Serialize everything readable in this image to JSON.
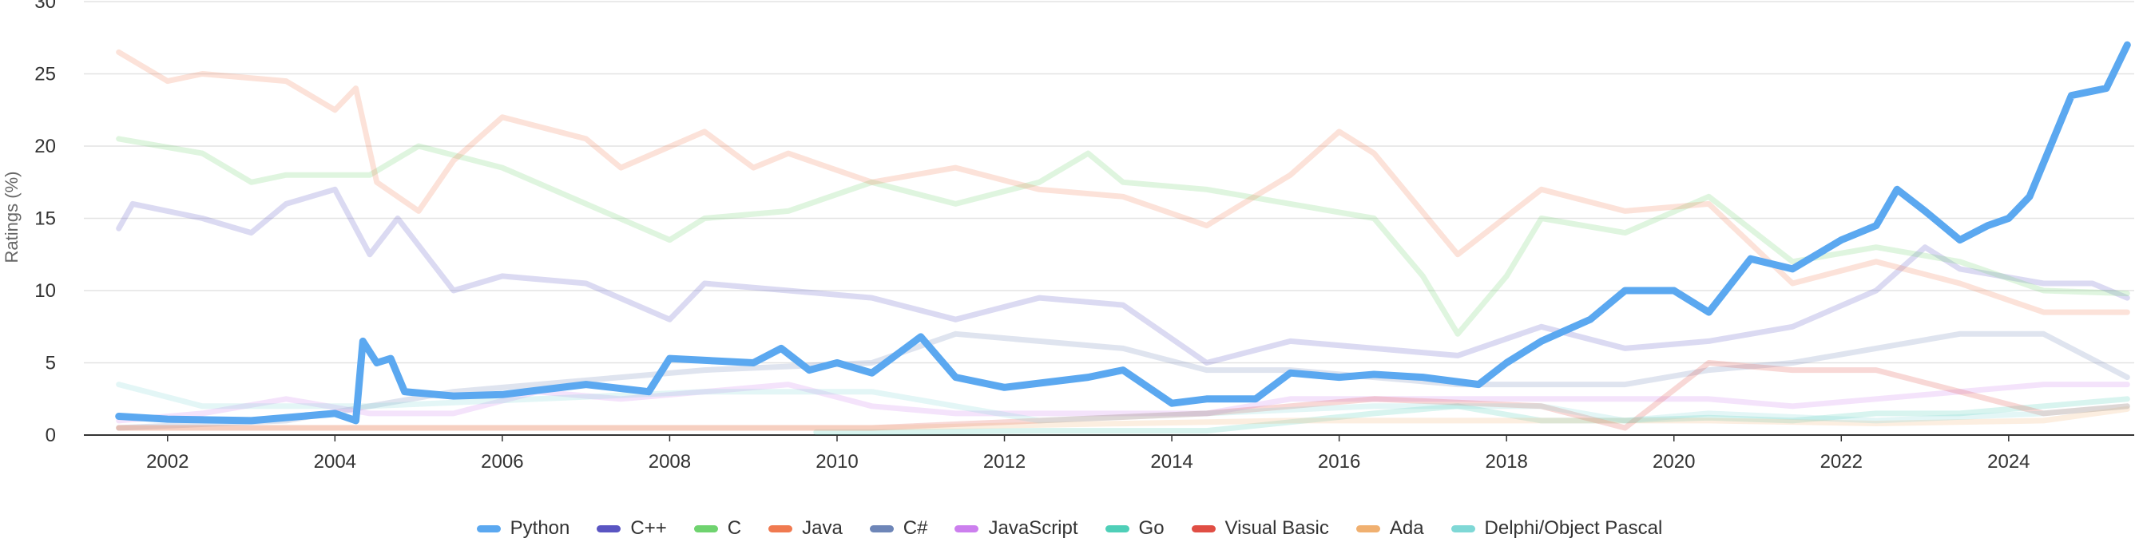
{
  "chart_data": {
    "type": "line",
    "ylabel": "Ratings (%)",
    "ylim": [
      0,
      30
    ],
    "y_ticks": [
      "0",
      "5",
      "10",
      "15",
      "20",
      "25",
      "30"
    ],
    "x_ticks": [
      "2002",
      "2004",
      "2006",
      "2008",
      "2010",
      "2012",
      "2014",
      "2016",
      "2018",
      "2020",
      "2022",
      "2024"
    ],
    "xlim": [
      "2001-01",
      "2025-07"
    ],
    "grid": true,
    "legend_position": "bottom",
    "highlighted_series": "Python",
    "series": [
      {
        "name": "Python",
        "color": "#5ba8f0",
        "points": [
          [
            "2001-06",
            1.3
          ],
          [
            "2002-01",
            1.1
          ],
          [
            "2003-01",
            1.0
          ],
          [
            "2004-01",
            1.5
          ],
          [
            "2004-04",
            1.0
          ],
          [
            "2004-05",
            6.5
          ],
          [
            "2004-07",
            5.0
          ],
          [
            "2004-09",
            5.3
          ],
          [
            "2004-11",
            3.0
          ],
          [
            "2005-06",
            2.7
          ],
          [
            "2006-01",
            2.8
          ],
          [
            "2007-01",
            3.5
          ],
          [
            "2007-10",
            3.0
          ],
          [
            "2008-01",
            5.3
          ],
          [
            "2009-01",
            5.0
          ],
          [
            "2009-05",
            6.0
          ],
          [
            "2009-09",
            4.5
          ],
          [
            "2010-01",
            5.0
          ],
          [
            "2010-06",
            4.3
          ],
          [
            "2011-01",
            6.8
          ],
          [
            "2011-06",
            4.0
          ],
          [
            "2012-01",
            3.3
          ],
          [
            "2013-01",
            4.0
          ],
          [
            "2013-06",
            4.5
          ],
          [
            "2014-01",
            2.2
          ],
          [
            "2014-06",
            2.5
          ],
          [
            "2015-01",
            2.5
          ],
          [
            "2015-06",
            4.3
          ],
          [
            "2016-01",
            4.0
          ],
          [
            "2016-06",
            4.2
          ],
          [
            "2017-01",
            4.0
          ],
          [
            "2017-09",
            3.5
          ],
          [
            "2018-01",
            5.0
          ],
          [
            "2018-06",
            6.5
          ],
          [
            "2019-01",
            8.0
          ],
          [
            "2019-06",
            10.0
          ],
          [
            "2020-01",
            10.0
          ],
          [
            "2020-06",
            8.5
          ],
          [
            "2020-12",
            12.2
          ],
          [
            "2021-06",
            11.5
          ],
          [
            "2022-01",
            13.5
          ],
          [
            "2022-06",
            14.5
          ],
          [
            "2022-09",
            17.0
          ],
          [
            "2023-01",
            15.5
          ],
          [
            "2023-06",
            13.5
          ],
          [
            "2023-10",
            14.5
          ],
          [
            "2024-01",
            15.0
          ],
          [
            "2024-04",
            16.5
          ],
          [
            "2024-07",
            20.0
          ],
          [
            "2024-10",
            23.5
          ],
          [
            "2025-01",
            23.8
          ],
          [
            "2025-03",
            24.0
          ],
          [
            "2025-06",
            27.0
          ]
        ]
      },
      {
        "name": "C++",
        "color": "#5a55c2",
        "points": [
          [
            "2001-06",
            14.3
          ],
          [
            "2001-08",
            16.0
          ],
          [
            "2002-06",
            15.0
          ],
          [
            "2003-01",
            14.0
          ],
          [
            "2003-06",
            16.0
          ],
          [
            "2004-01",
            17.0
          ],
          [
            "2004-06",
            12.5
          ],
          [
            "2004-10",
            15.0
          ],
          [
            "2005-06",
            10.0
          ],
          [
            "2006-01",
            11.0
          ],
          [
            "2007-01",
            10.5
          ],
          [
            "2008-01",
            8.0
          ],
          [
            "2008-06",
            10.5
          ],
          [
            "2009-06",
            10.0
          ],
          [
            "2010-06",
            9.5
          ],
          [
            "2011-06",
            8.0
          ],
          [
            "2012-06",
            9.5
          ],
          [
            "2013-06",
            9.0
          ],
          [
            "2014-06",
            5.0
          ],
          [
            "2015-06",
            6.5
          ],
          [
            "2016-06",
            6.0
          ],
          [
            "2017-06",
            5.5
          ],
          [
            "2018-06",
            7.5
          ],
          [
            "2019-06",
            6.0
          ],
          [
            "2020-06",
            6.5
          ],
          [
            "2021-06",
            7.5
          ],
          [
            "2022-06",
            10.0
          ],
          [
            "2023-01",
            13.0
          ],
          [
            "2023-06",
            11.5
          ],
          [
            "2024-06",
            10.5
          ],
          [
            "2025-01",
            10.5
          ],
          [
            "2025-06",
            9.5
          ]
        ]
      },
      {
        "name": "C",
        "color": "#6fd36f",
        "points": [
          [
            "2001-06",
            20.5
          ],
          [
            "2002-06",
            19.5
          ],
          [
            "2003-01",
            17.5
          ],
          [
            "2003-06",
            18.0
          ],
          [
            "2004-06",
            18.0
          ],
          [
            "2005-01",
            20.0
          ],
          [
            "2006-01",
            18.5
          ],
          [
            "2007-01",
            16.0
          ],
          [
            "2008-01",
            13.5
          ],
          [
            "2008-06",
            15.0
          ],
          [
            "2009-06",
            15.5
          ],
          [
            "2010-06",
            17.5
          ],
          [
            "2011-06",
            16.0
          ],
          [
            "2012-06",
            17.5
          ],
          [
            "2013-01",
            19.5
          ],
          [
            "2013-06",
            17.5
          ],
          [
            "2014-06",
            17.0
          ],
          [
            "2015-06",
            16.0
          ],
          [
            "2016-06",
            15.0
          ],
          [
            "2017-01",
            11.0
          ],
          [
            "2017-06",
            7.0
          ],
          [
            "2018-01",
            11.0
          ],
          [
            "2018-06",
            15.0
          ],
          [
            "2019-06",
            14.0
          ],
          [
            "2020-06",
            16.5
          ],
          [
            "2021-06",
            12.0
          ],
          [
            "2022-06",
            13.0
          ],
          [
            "2023-06",
            12.0
          ],
          [
            "2024-06",
            10.0
          ],
          [
            "2025-06",
            9.8
          ]
        ]
      },
      {
        "name": "Java",
        "color": "#f07a50",
        "points": [
          [
            "2001-06",
            26.5
          ],
          [
            "2002-01",
            24.5
          ],
          [
            "2002-06",
            25.0
          ],
          [
            "2003-06",
            24.5
          ],
          [
            "2004-01",
            22.5
          ],
          [
            "2004-04",
            24.0
          ],
          [
            "2004-07",
            17.5
          ],
          [
            "2005-01",
            15.5
          ],
          [
            "2005-06",
            19.0
          ],
          [
            "2006-01",
            22.0
          ],
          [
            "2007-01",
            20.5
          ],
          [
            "2007-06",
            18.5
          ],
          [
            "2008-06",
            21.0
          ],
          [
            "2009-01",
            18.5
          ],
          [
            "2009-06",
            19.5
          ],
          [
            "2010-06",
            17.5
          ],
          [
            "2011-06",
            18.5
          ],
          [
            "2012-06",
            17.0
          ],
          [
            "2013-06",
            16.5
          ],
          [
            "2014-06",
            14.5
          ],
          [
            "2015-06",
            18.0
          ],
          [
            "2016-01",
            21.0
          ],
          [
            "2016-06",
            19.5
          ],
          [
            "2017-06",
            12.5
          ],
          [
            "2018-06",
            17.0
          ],
          [
            "2019-06",
            15.5
          ],
          [
            "2020-06",
            16.0
          ],
          [
            "2021-06",
            10.5
          ],
          [
            "2022-06",
            12.0
          ],
          [
            "2023-06",
            10.5
          ],
          [
            "2024-06",
            8.5
          ],
          [
            "2025-06",
            8.5
          ]
        ]
      },
      {
        "name": "C#",
        "color": "#6e86b8",
        "points": [
          [
            "2001-06",
            0.5
          ],
          [
            "2003-06",
            1.0
          ],
          [
            "2005-06",
            3.0
          ],
          [
            "2007-06",
            4.0
          ],
          [
            "2008-06",
            4.5
          ],
          [
            "2010-06",
            5.0
          ],
          [
            "2011-06",
            7.0
          ],
          [
            "2012-06",
            6.5
          ],
          [
            "2013-06",
            6.0
          ],
          [
            "2014-06",
            4.5
          ],
          [
            "2015-06",
            4.5
          ],
          [
            "2016-06",
            4.0
          ],
          [
            "2017-06",
            3.5
          ],
          [
            "2018-06",
            3.5
          ],
          [
            "2019-06",
            3.5
          ],
          [
            "2020-06",
            4.5
          ],
          [
            "2021-06",
            5.0
          ],
          [
            "2022-06",
            6.0
          ],
          [
            "2023-06",
            7.0
          ],
          [
            "2024-06",
            7.0
          ],
          [
            "2025-06",
            4.0
          ]
        ]
      },
      {
        "name": "JavaScript",
        "color": "#cc7fee",
        "points": [
          [
            "2001-06",
            1.0
          ],
          [
            "2002-06",
            1.5
          ],
          [
            "2003-06",
            2.5
          ],
          [
            "2004-06",
            1.5
          ],
          [
            "2005-06",
            1.5
          ],
          [
            "2006-06",
            3.0
          ],
          [
            "2007-06",
            2.5
          ],
          [
            "2008-06",
            3.0
          ],
          [
            "2009-06",
            3.5
          ],
          [
            "2010-06",
            2.0
          ],
          [
            "2011-06",
            1.5
          ],
          [
            "2012-06",
            1.5
          ],
          [
            "2013-06",
            1.5
          ],
          [
            "2014-06",
            1.5
          ],
          [
            "2015-06",
            2.5
          ],
          [
            "2016-06",
            2.5
          ],
          [
            "2017-06",
            2.5
          ],
          [
            "2018-06",
            2.5
          ],
          [
            "2019-06",
            2.5
          ],
          [
            "2020-06",
            2.5
          ],
          [
            "2021-06",
            2.0
          ],
          [
            "2022-06",
            2.5
          ],
          [
            "2023-06",
            3.0
          ],
          [
            "2024-06",
            3.5
          ],
          [
            "2025-06",
            3.5
          ]
        ]
      },
      {
        "name": "Go",
        "color": "#4fcfb8",
        "points": [
          [
            "2009-10",
            0.2
          ],
          [
            "2010-06",
            0.2
          ],
          [
            "2012-06",
            0.3
          ],
          [
            "2014-06",
            0.3
          ],
          [
            "2016-06",
            1.5
          ],
          [
            "2017-06",
            2.0
          ],
          [
            "2018-06",
            1.0
          ],
          [
            "2019-06",
            1.0
          ],
          [
            "2020-06",
            1.2
          ],
          [
            "2021-06",
            1.0
          ],
          [
            "2022-06",
            1.5
          ],
          [
            "2023-06",
            1.5
          ],
          [
            "2024-06",
            2.0
          ],
          [
            "2025-06",
            2.5
          ]
        ]
      },
      {
        "name": "Visual Basic",
        "color": "#e04e44",
        "points": [
          [
            "2001-06",
            0.5
          ],
          [
            "2005-06",
            0.5
          ],
          [
            "2010-06",
            0.5
          ],
          [
            "2014-06",
            1.5
          ],
          [
            "2016-06",
            2.5
          ],
          [
            "2018-06",
            2.0
          ],
          [
            "2019-06",
            0.5
          ],
          [
            "2020-06",
            5.0
          ],
          [
            "2021-06",
            4.5
          ],
          [
            "2022-06",
            4.5
          ],
          [
            "2023-06",
            3.0
          ],
          [
            "2024-06",
            1.5
          ],
          [
            "2025-06",
            2.0
          ]
        ]
      },
      {
        "name": "Ada",
        "color": "#f0b070",
        "points": [
          [
            "2001-06",
            0.5
          ],
          [
            "2005-06",
            0.5
          ],
          [
            "2010-06",
            0.5
          ],
          [
            "2015-06",
            1.0
          ],
          [
            "2020-06",
            1.0
          ],
          [
            "2022-06",
            0.8
          ],
          [
            "2024-06",
            1.0
          ],
          [
            "2025-06",
            1.8
          ]
        ]
      },
      {
        "name": "Delphi/Object Pascal",
        "color": "#7fd8d6",
        "points": [
          [
            "2001-06",
            3.5
          ],
          [
            "2002-06",
            2.0
          ],
          [
            "2004-06",
            2.0
          ],
          [
            "2006-06",
            2.5
          ],
          [
            "2008-06",
            3.0
          ],
          [
            "2010-06",
            3.0
          ],
          [
            "2012-06",
            1.0
          ],
          [
            "2014-06",
            1.5
          ],
          [
            "2016-06",
            2.0
          ],
          [
            "2018-06",
            2.0
          ],
          [
            "2019-06",
            1.0
          ],
          [
            "2020-06",
            1.5
          ],
          [
            "2022-06",
            1.0
          ],
          [
            "2024-06",
            1.5
          ],
          [
            "2025-06",
            2.0
          ]
        ]
      }
    ]
  }
}
